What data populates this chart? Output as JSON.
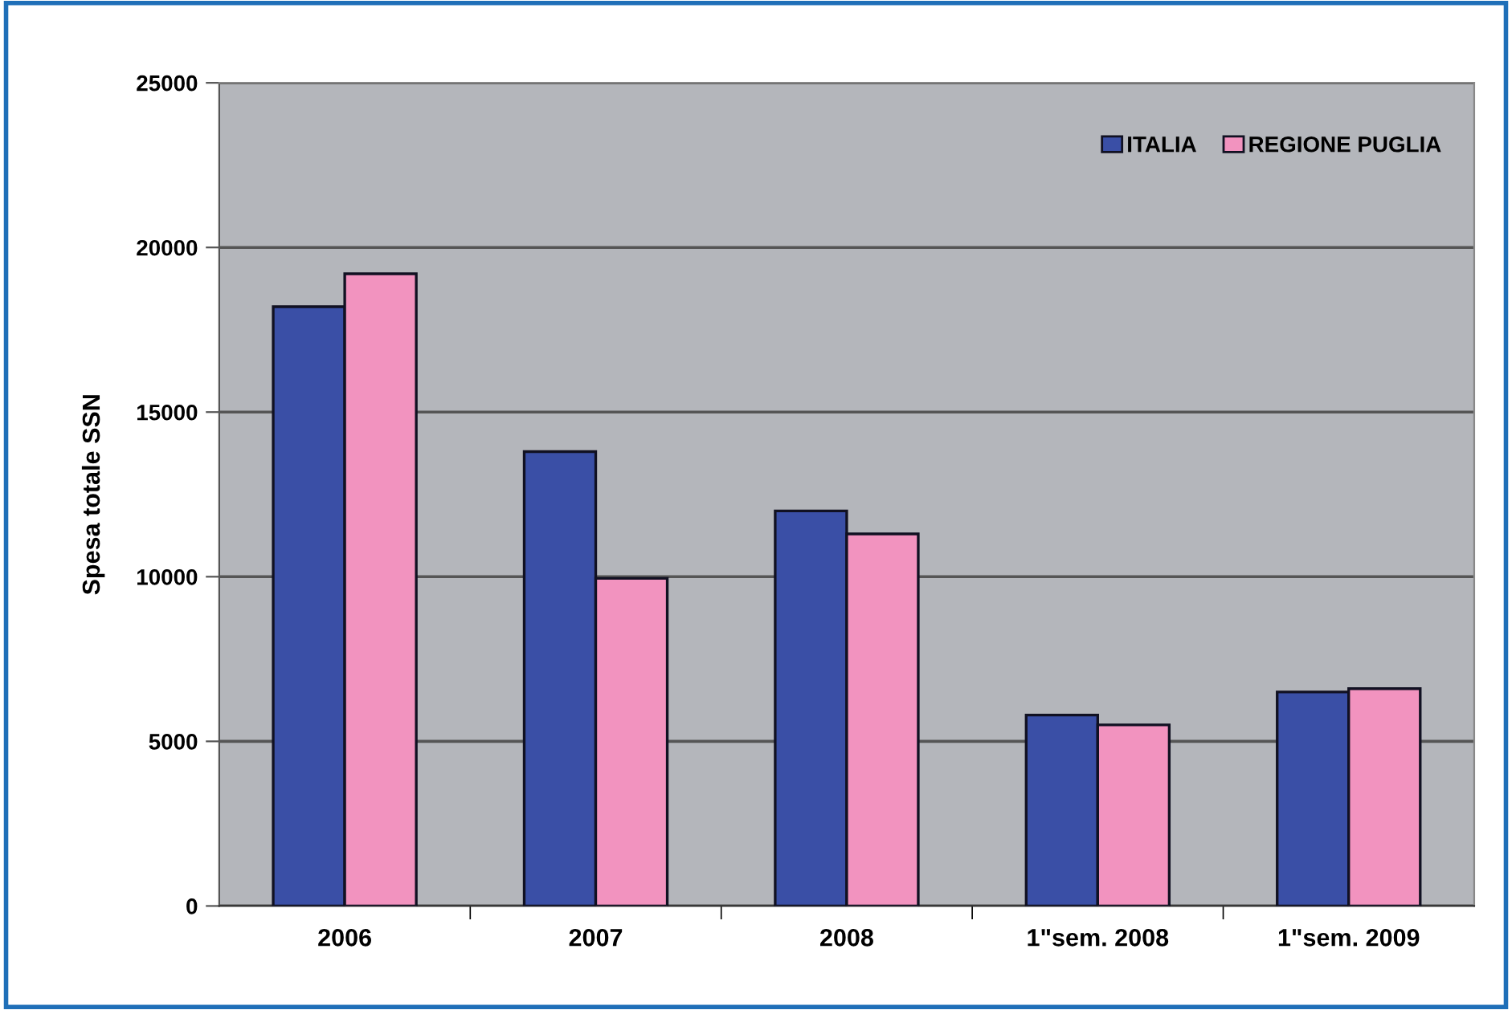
{
  "chart_data": {
    "type": "bar",
    "ylabel": "Spesa totale SSN",
    "categories": [
      "2006",
      "2007",
      "2008",
      "1\"sem. 2008",
      "1\"sem. 2009"
    ],
    "series": [
      {
        "name": "ITALIA",
        "color": "#3a4fa6",
        "values": [
          18200,
          13800,
          12000,
          5800,
          6500
        ]
      },
      {
        "name": "REGIONE PUGLIA",
        "color": "#f293bf",
        "values": [
          19200,
          9950,
          11300,
          5500,
          6600
        ]
      }
    ],
    "ylim": [
      0,
      25000
    ],
    "yticks": [
      0,
      5000,
      10000,
      15000,
      20000,
      25000
    ],
    "grid": "y",
    "legend": "top right"
  }
}
